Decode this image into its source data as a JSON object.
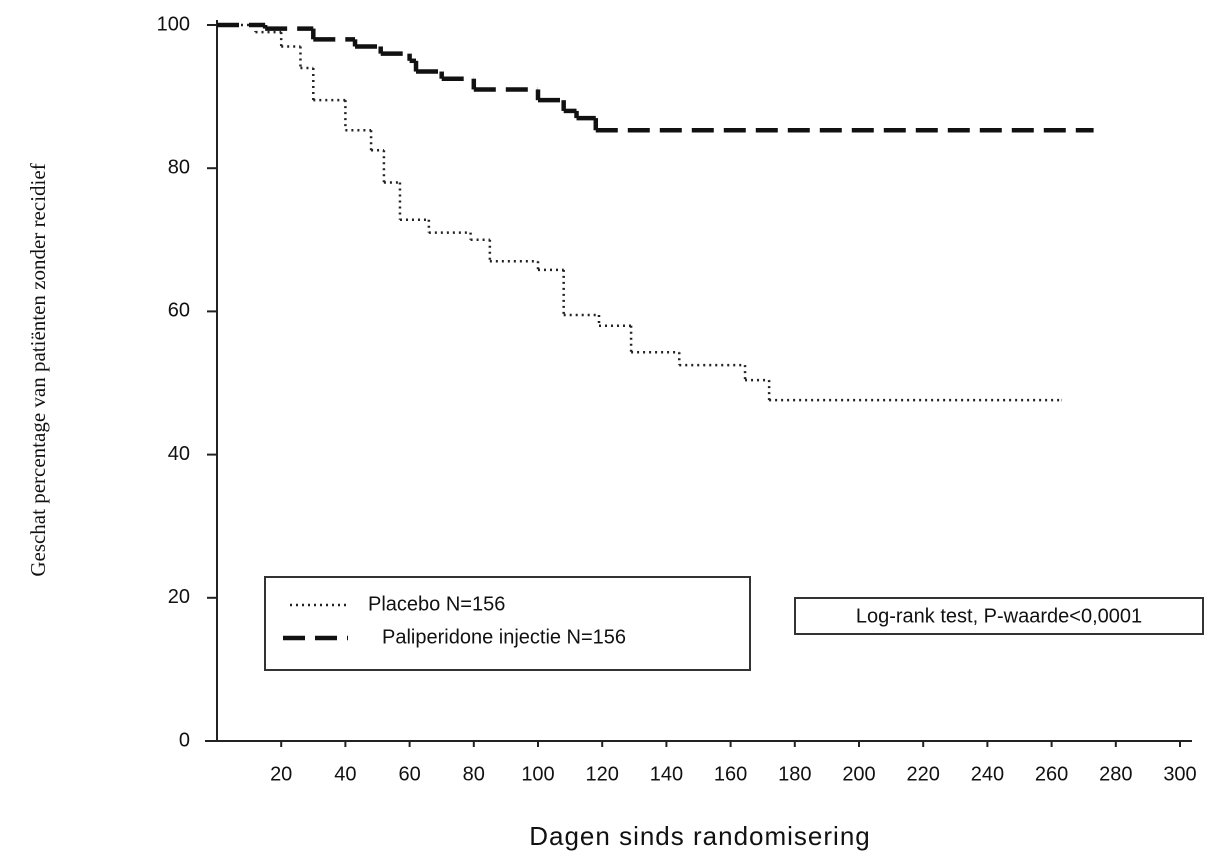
{
  "chart_data": {
    "type": "step-line",
    "y_label": "Geschat percentage van patiënten zonder recidief",
    "x_label": "Dagen sinds randomisering",
    "annotation": "Log-rank test, P-waarde<0,0001",
    "xlim": [
      0,
      300
    ],
    "xticks": [
      20,
      40,
      60,
      80,
      100,
      120,
      140,
      160,
      180,
      200,
      220,
      240,
      260,
      280,
      300
    ],
    "ylim": [
      0,
      100
    ],
    "yticks": [
      0,
      20,
      40,
      60,
      80,
      100
    ],
    "legend": "lower left",
    "series": [
      {
        "name": "Placebo N=156",
        "color": "#222222",
        "line_style": "dotted",
        "x": [
          0,
          12,
          20,
          26,
          30,
          40,
          48,
          52,
          57,
          66,
          79,
          85,
          100,
          108,
          119,
          129,
          144,
          164.5,
          172,
          263
        ],
        "values": [
          100,
          99,
          97,
          94,
          89.5,
          85.3,
          82.5,
          78,
          72.8,
          71,
          70,
          67,
          65.8,
          59.5,
          58,
          54.3,
          52.5,
          50.4,
          47.6,
          47.6
        ]
      },
      {
        "name": "Paliperidone injectie N=156",
        "color": "#111111",
        "line_style": "dashed",
        "x": [
          0,
          15,
          30,
          43,
          51,
          60,
          62,
          70,
          80,
          100,
          108,
          112,
          118,
          273
        ],
        "values": [
          100,
          99.5,
          98,
          97,
          96,
          95,
          93.5,
          92.5,
          91,
          89.5,
          88,
          87,
          85.3,
          85.3
        ]
      }
    ]
  }
}
